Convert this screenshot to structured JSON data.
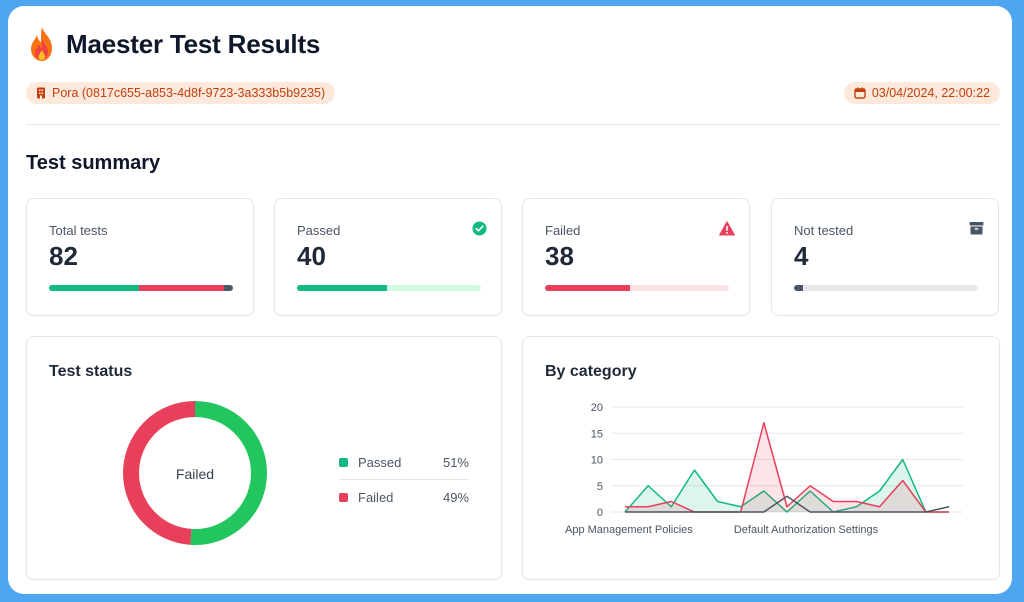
{
  "header": {
    "title": "Maester Test Results",
    "tenant": "Pora (0817c655-a853-4d8f-9723-3a333b5b9235)",
    "datetime": "03/04/2024, 22:00:22"
  },
  "summary": {
    "title": "Test summary",
    "cards": [
      {
        "label": "Total tests",
        "value": "82"
      },
      {
        "label": "Passed",
        "value": "40",
        "fraction": 0.49
      },
      {
        "label": "Failed",
        "value": "38",
        "fraction": 0.46
      },
      {
        "label": "Not tested",
        "value": "4",
        "fraction": 0.05
      }
    ]
  },
  "colors": {
    "passed": "#22c55e",
    "passed_alt": "#10b981",
    "failed": "#e8405a",
    "not_tested": "#4b5563",
    "accent": "#c2410c"
  },
  "icons": {
    "logo": "flame-icon",
    "tenant": "building-icon",
    "date": "calendar-icon",
    "passed": "check-circle-icon",
    "failed": "warning-icon",
    "not_tested": "archive-icon"
  },
  "status_panel": {
    "title": "Test status",
    "center_label": "Failed",
    "legend": [
      {
        "name": "Passed",
        "pct": "51%"
      },
      {
        "name": "Failed",
        "pct": "49%"
      }
    ]
  },
  "category_panel": {
    "title": "By category"
  },
  "chart_data": [
    {
      "type": "pie",
      "title": "Test status",
      "center_label": "Failed",
      "categories": [
        "Passed",
        "Failed"
      ],
      "values": [
        51,
        49
      ],
      "colors": [
        "#22c55e",
        "#e8405a"
      ]
    },
    {
      "type": "area",
      "title": "By category",
      "xlabel": "",
      "ylabel": "",
      "ylim": [
        0,
        20
      ],
      "yticks": [
        0,
        5,
        10,
        15,
        20
      ],
      "x_tick_labels": [
        "App Management Policies",
        "Default Authorization Settings"
      ],
      "x": [
        0,
        1,
        2,
        3,
        4,
        5,
        6,
        7,
        8,
        9,
        10,
        11,
        12,
        13,
        14
      ],
      "grid": true,
      "series": [
        {
          "name": "Passed",
          "color": "#10b981",
          "values": [
            0,
            5,
            1,
            8,
            2,
            1,
            4,
            0,
            4,
            0,
            1,
            4,
            10,
            0,
            0
          ]
        },
        {
          "name": "Failed",
          "color": "#e8405a",
          "values": [
            1,
            1,
            2,
            0,
            0,
            0,
            17,
            1,
            5,
            2,
            2,
            1,
            6,
            0,
            0
          ]
        },
        {
          "name": "Not tested",
          "color": "#4b5563",
          "values": [
            0,
            0,
            0,
            0,
            0,
            0,
            0,
            3,
            0,
            0,
            0,
            0,
            0,
            0,
            1
          ]
        }
      ]
    }
  ]
}
